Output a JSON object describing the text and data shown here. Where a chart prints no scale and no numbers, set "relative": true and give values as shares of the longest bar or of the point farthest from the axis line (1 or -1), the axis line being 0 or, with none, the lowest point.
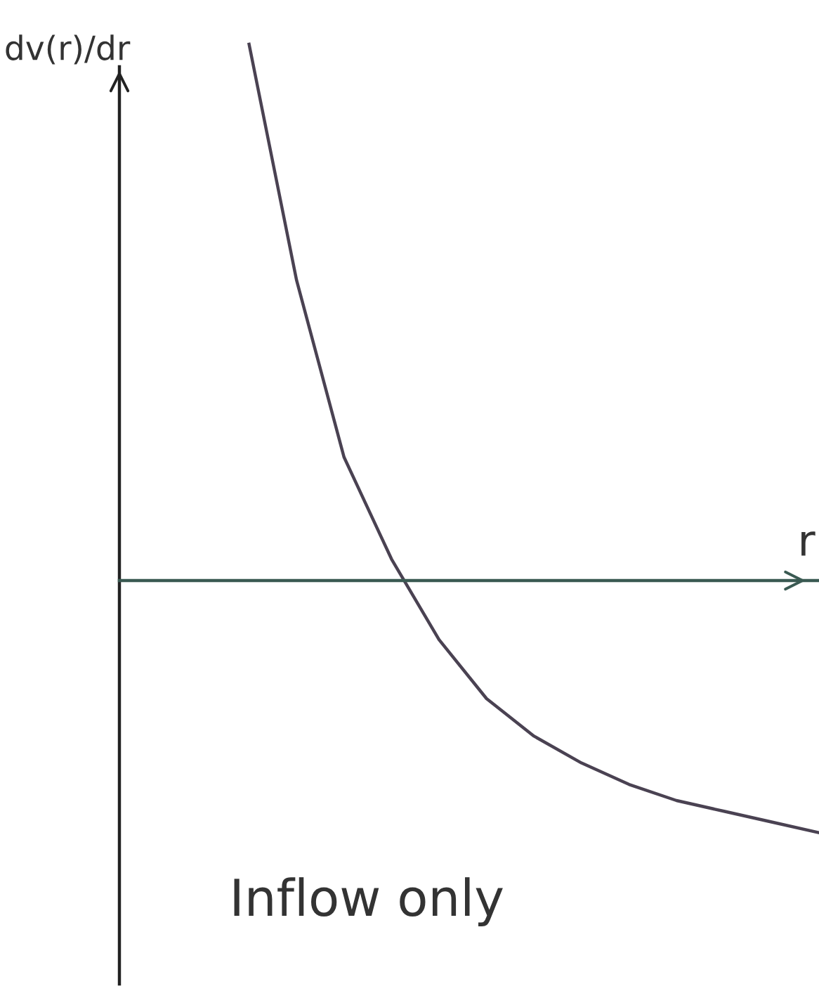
{
  "chart_data": {
    "type": "line",
    "relative": true,
    "ylabel": "dv(r)/dr",
    "xlabel": "r",
    "annotations": [
      "Inflow only"
    ],
    "grid": false,
    "marker": "none",
    "line_style": "solid",
    "categories": [
      null,
      null,
      null,
      null,
      null,
      null,
      null,
      null,
      null,
      null,
      null,
      null,
      null
    ],
    "series": [
      {
        "color": "#4a4252",
        "values": [
          1,
          0.56,
          0.23,
          0.04,
          -0.11,
          -0.22,
          -0.29,
          -0.34,
          -0.38,
          -0.41,
          -0.43,
          -0.45,
          -0.47
        ]
      }
    ]
  }
}
